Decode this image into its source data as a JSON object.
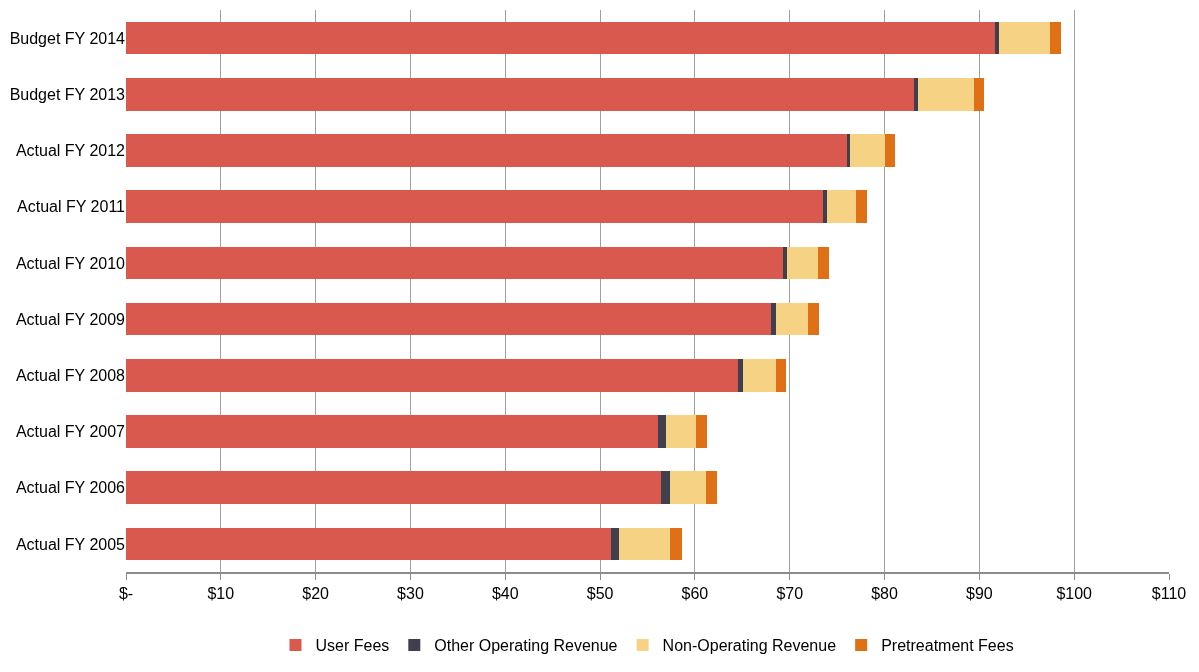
{
  "chart_data": {
    "type": "bar",
    "orientation": "horizontal",
    "stacked": true,
    "categories": [
      "Budget FY 2014",
      "Budget FY 2013",
      "Actual FY 2012",
      "Actual FY 2011",
      "Actual FY 2010",
      "Actual FY 2009",
      "Actual FY 2008",
      "Actual FY 2007",
      "Actual FY 2006",
      "Actual FY 2005"
    ],
    "series": [
      {
        "name": "User Fees",
        "color": "#d9594f",
        "values": [
          91.7,
          83.1,
          76.0,
          73.5,
          69.3,
          68.0,
          64.5,
          56.1,
          56.4,
          51.2
        ]
      },
      {
        "name": "Other Operating Revenue",
        "color": "#3f3f4e",
        "values": [
          0.4,
          0.4,
          0.4,
          0.4,
          0.4,
          0.5,
          0.6,
          0.8,
          1.0,
          0.8
        ]
      },
      {
        "name": "Non-Operating Revenue",
        "color": "#f6d285",
        "values": [
          5.4,
          5.9,
          3.6,
          3.1,
          3.3,
          3.4,
          3.4,
          3.2,
          3.8,
          5.4
        ]
      },
      {
        "name": "Pretreatment Fees",
        "color": "#df7015",
        "values": [
          1.1,
          1.1,
          1.1,
          1.1,
          1.1,
          1.2,
          1.1,
          1.2,
          1.1,
          1.2
        ]
      }
    ],
    "xlim": [
      0,
      110
    ],
    "xticks": [
      {
        "value": 0,
        "label": "$-"
      },
      {
        "value": 10,
        "label": "$10"
      },
      {
        "value": 20,
        "label": "$20"
      },
      {
        "value": 30,
        "label": "$30"
      },
      {
        "value": 40,
        "label": "$40"
      },
      {
        "value": 50,
        "label": "$50"
      },
      {
        "value": 60,
        "label": "$60"
      },
      {
        "value": 70,
        "label": "$70"
      },
      {
        "value": 80,
        "label": "$80"
      },
      {
        "value": 90,
        "label": "$90"
      },
      {
        "value": 100,
        "label": "$100"
      },
      {
        "value": 110,
        "label": "$110"
      }
    ],
    "grid": "x",
    "legend": "bottom"
  }
}
